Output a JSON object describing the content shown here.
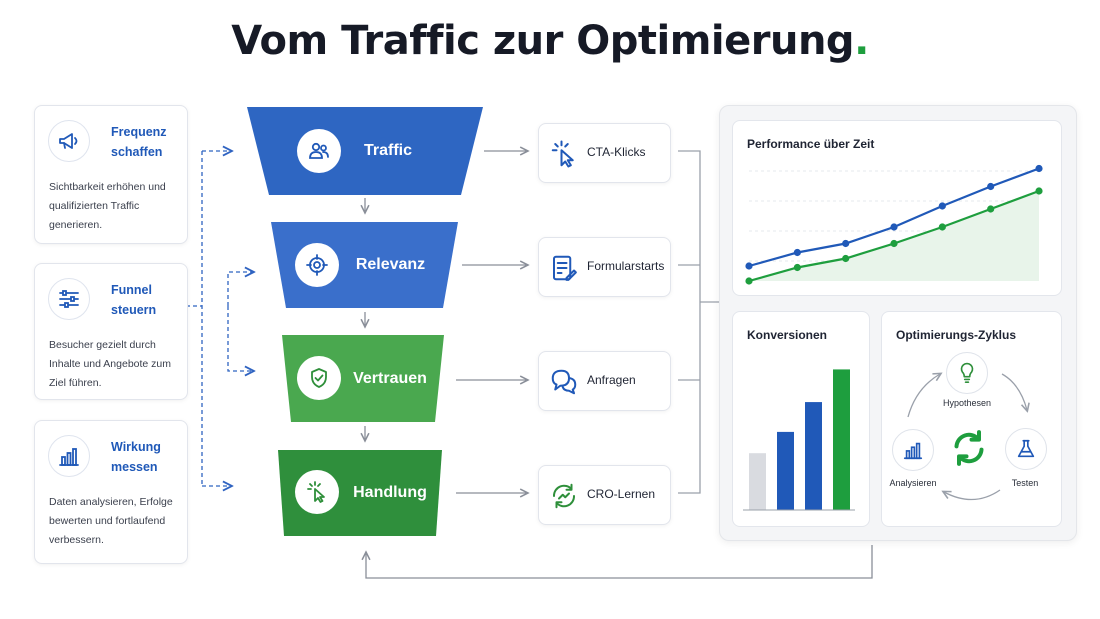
{
  "title": {
    "text": "Vom Traffic zur Optimierung",
    "dot": "."
  },
  "left_cards": [
    {
      "icon": "megaphone-icon",
      "title": "Frequenz schaffen",
      "text": "Sichtbarkeit erhöhen und qualifizierten Traffic generieren."
    },
    {
      "icon": "sliders-icon",
      "title": "Funnel steuern",
      "text": "Besucher gezielt durch Inhalte und Angebote zum Ziel führen."
    },
    {
      "icon": "bar-chart-icon",
      "title": "Wirkung messen",
      "text": "Daten analysieren, Erfolge bewerten und fortlaufend verbessern."
    }
  ],
  "funnel": [
    {
      "label": "Traffic",
      "icon": "users-icon",
      "color": "#2e66c2"
    },
    {
      "label": "Relevanz",
      "icon": "target-icon",
      "color": "#3a6fcb"
    },
    {
      "label": "Vertrauen",
      "icon": "shield-check-icon",
      "color": "#4aa84f"
    },
    {
      "label": "Handlung",
      "icon": "cursor-click-icon",
      "color": "#2f8f3c"
    }
  ],
  "results": [
    {
      "label": "CTA-Klicks",
      "icon": "cursor-click-icon"
    },
    {
      "label": "Formularstarts",
      "icon": "form-icon"
    },
    {
      "label": "Anfragen",
      "icon": "chat-bubbles-icon"
    },
    {
      "label": "CRO-Lernen",
      "icon": "cycle-trend-icon"
    }
  ],
  "colors": {
    "blue": "#2059b8",
    "green": "#1e9e3e",
    "gray_bar": "#d9dbe0"
  },
  "performance": {
    "title": "Performance über Zeit",
    "chart_data": {
      "type": "line",
      "series": [
        {
          "values": [
            10,
            19,
            25,
            36,
            50,
            63,
            75
          ]
        },
        {
          "values": [
            0,
            9,
            15,
            25,
            36,
            48,
            60
          ]
        }
      ],
      "ylim": [
        0,
        80
      ],
      "xlabel": "",
      "ylabel": ""
    }
  },
  "conversions": {
    "title": "Konversionen",
    "chart_data": {
      "type": "bar",
      "values": [
        40,
        55,
        76,
        99
      ],
      "ylim": [
        0,
        100
      ]
    }
  },
  "cycle": {
    "title": "Optimierungs-Zyklus",
    "nodes": [
      {
        "label": "Hypothesen",
        "icon": "lightbulb-icon"
      },
      {
        "label": "Testen",
        "icon": "flask-icon"
      },
      {
        "label": "Analysieren",
        "icon": "bar-chart-icon"
      }
    ],
    "center_icon": "refresh-icon"
  }
}
